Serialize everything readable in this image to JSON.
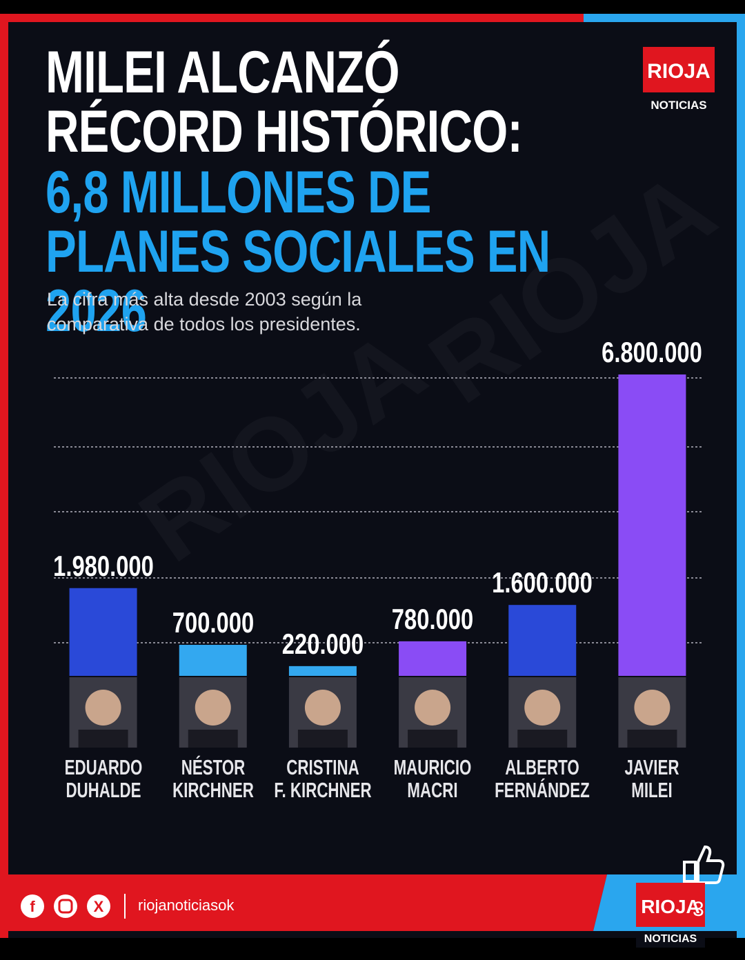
{
  "brand": {
    "name": "RIOJA",
    "tagline": "NOTICIAS"
  },
  "chart_data": {
    "type": "bar",
    "title": "MILEI ALCANZÓ\nRÉCORD HISTÓRICO:",
    "title_highlight": "6,8 MILLONES DE\nPLANES SOCIALES EN 2026",
    "subtitle": "La cifra más alta desde 2003 según la\ncomparativa de todos los presidentes.",
    "categories": [
      "EDUARDO\nDUHALDE",
      "NÉSTOR\nKIRCHNER",
      "CRISTINA\nF. KIRCHNER",
      "MAURICIO\nMACRI",
      "ALBERTO\nFERNÁNDEZ",
      "JAVIER\nMILEI"
    ],
    "values": [
      1980000,
      700000,
      220000,
      780000,
      1600000,
      6800000
    ],
    "value_labels": [
      "1.980.000",
      "700.000",
      "220.000",
      "780.000",
      "1.600.000",
      "6.800.000"
    ],
    "colors": [
      "#2a49d8",
      "#33a8f0",
      "#33a8f0",
      "#8a4cf5",
      "#2a49d8",
      "#8a4cf5"
    ],
    "ylim": [
      0,
      6800000
    ]
  },
  "watermark": "RIOJA",
  "footer": {
    "handle": "riojanoticiasok"
  },
  "reactions": {
    "likes": 3
  }
}
